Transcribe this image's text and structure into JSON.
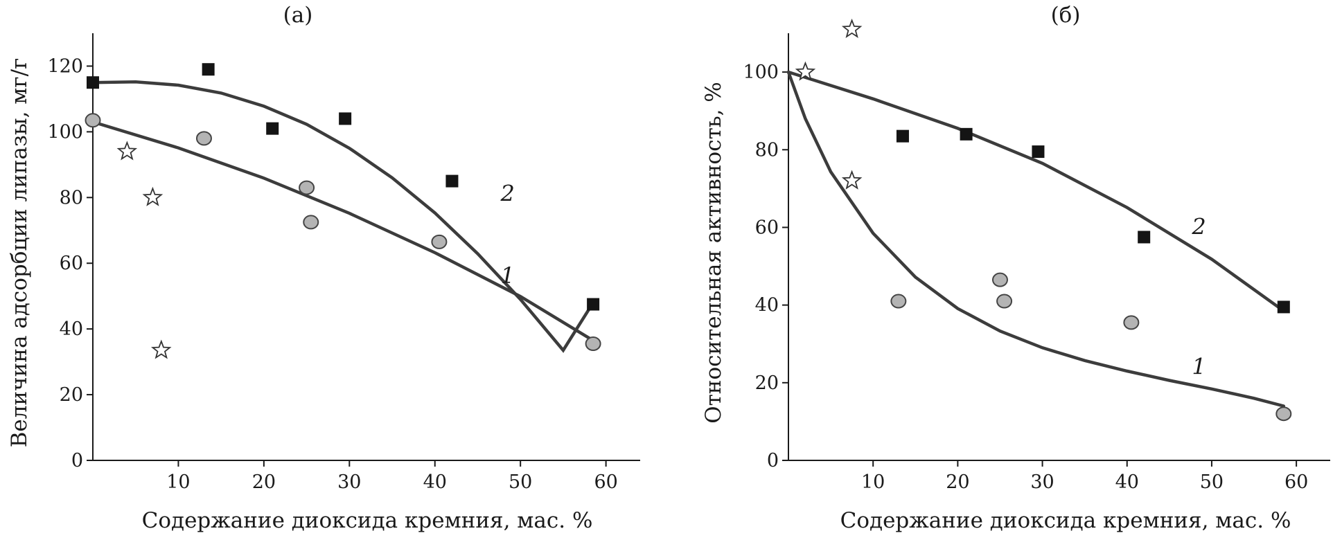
{
  "chart_data": [
    {
      "type": "scatter",
      "panel_label": "(а)",
      "xlabel": "Содержание диоксида кремния, мас. %",
      "ylabel": "Величина адсорбции липазы, мг/г",
      "xlim": [
        0,
        64
      ],
      "ylim": [
        0,
        130
      ],
      "x_ticks": [
        10,
        20,
        30,
        40,
        50,
        60
      ],
      "y_ticks": [
        0,
        20,
        40,
        60,
        80,
        100,
        120
      ],
      "grid": false,
      "series": [
        {
          "name": "2",
          "marker": "square",
          "label": "2",
          "x": [
            0,
            13.5,
            21,
            29.5,
            42,
            58.5
          ],
          "y": [
            115,
            119,
            101,
            104,
            85,
            47.5
          ],
          "fit": {
            "x": [
              0,
              5,
              10,
              15,
              20,
              25,
              30,
              35,
              40,
              45,
              50,
              55,
              58.5
            ],
            "y": [
              115,
              115.2,
              114.2,
              111.8,
              107.8,
              102.3,
              95,
              86,
              75.3,
              62.9,
              49,
              33.5,
              48
            ]
          },
          "curve_label_at": {
            "x": 48.5,
            "y": 81
          }
        },
        {
          "name": "1",
          "marker": "circle",
          "label": "1",
          "x": [
            0,
            13,
            25,
            25.5,
            40.5,
            58.5
          ],
          "y": [
            103.5,
            98,
            83,
            72.5,
            66.5,
            35.5
          ],
          "fit": {
            "x": [
              0,
              10,
              20,
              30,
              40,
              50,
              58.5
            ],
            "y": [
              103,
              95.1,
              85.9,
              75.2,
              63.2,
              49.9,
              36.5
            ]
          },
          "curve_label_at": {
            "x": 48.5,
            "y": 56
          }
        },
        {
          "name": "stars",
          "marker": "star",
          "x": [
            4,
            7,
            8
          ],
          "y": [
            94,
            80,
            33.5
          ]
        }
      ]
    },
    {
      "type": "scatter",
      "panel_label": "(б)",
      "xlabel": "Содержание диоксида кремния, мас. %",
      "ylabel": "Относительная активность, %",
      "xlim": [
        0,
        64
      ],
      "ylim": [
        0,
        110
      ],
      "x_ticks": [
        10,
        20,
        30,
        40,
        50,
        60
      ],
      "y_ticks": [
        0,
        20,
        40,
        60,
        80,
        100
      ],
      "grid": false,
      "series": [
        {
          "name": "2",
          "marker": "square",
          "label": "2",
          "x": [
            13.5,
            21,
            29.5,
            42,
            58.5
          ],
          "y": [
            83.5,
            84,
            79.5,
            57.5,
            39.5
          ],
          "fit": {
            "x": [
              0,
              10,
              20,
              30,
              40,
              50,
              58.5
            ],
            "y": [
              100,
              93.1,
              85.5,
              76.5,
              65.1,
              51.8,
              38.5
            ]
          },
          "curve_label_at": {
            "x": 48.5,
            "y": 60
          }
        },
        {
          "name": "1",
          "marker": "circle",
          "label": "1",
          "x": [
            13,
            25,
            25.5,
            40.5,
            58.5
          ],
          "y": [
            41,
            46.5,
            41,
            35.5,
            12
          ],
          "fit": {
            "x": [
              0,
              2,
              5,
              10,
              15,
              20,
              25,
              30,
              35,
              40,
              45,
              50,
              55,
              58.5
            ],
            "y": [
              100,
              88,
              74.3,
              58.5,
              47.2,
              39.1,
              33.3,
              29,
              25.7,
              23,
              20.6,
              18.4,
              16,
              14
            ]
          },
          "curve_label_at": {
            "x": 48.5,
            "y": 24
          }
        },
        {
          "name": "stars",
          "marker": "star",
          "x": [
            2,
            7.5,
            7.5
          ],
          "y": [
            100,
            111,
            72
          ]
        }
      ]
    }
  ]
}
